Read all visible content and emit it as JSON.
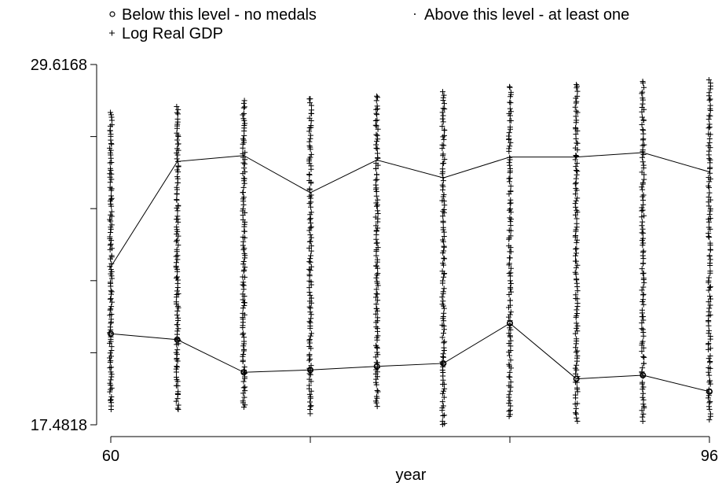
{
  "chart_data": {
    "type": "scatter",
    "title": "",
    "xlabel": "year",
    "ylabel": "",
    "xlim": [
      60,
      96
    ],
    "ylim": [
      17.4818,
      29.6168
    ],
    "x_ticks": [
      60,
      64,
      68,
      72,
      76,
      80,
      84,
      88,
      92,
      96
    ],
    "x_tick_labels": [
      "60",
      "96"
    ],
    "y_ticks": [
      17.4818,
      19.9088,
      22.3358,
      24.7628,
      27.1898,
      29.6168
    ],
    "y_tick_labels": [
      "17.4818",
      "29.6168"
    ],
    "legend": {
      "placement": "top",
      "entries": [
        {
          "marker": "circle",
          "label": "Below this level - no medals"
        },
        {
          "marker": "dot",
          "label": "Above this level - at least one"
        },
        {
          "marker": "plus",
          "label": "Log Real GDP"
        }
      ]
    },
    "series": [
      {
        "name": "Below this level - no medals",
        "marker": "circle",
        "connected": true,
        "x": [
          60,
          64,
          68,
          72,
          76,
          80,
          84,
          88,
          92,
          96
        ],
        "y": [
          20.55,
          20.35,
          19.25,
          19.33,
          19.45,
          19.55,
          20.9,
          19.03,
          19.15,
          18.6
        ]
      },
      {
        "name": "Above this level - at least one",
        "marker": "dot",
        "connected": true,
        "x": [
          60,
          64,
          68,
          72,
          76,
          80,
          84,
          88,
          92,
          96
        ],
        "y": [
          22.8,
          26.35,
          26.55,
          25.3,
          26.4,
          25.8,
          26.5,
          26.5,
          26.65,
          26.0
        ]
      },
      {
        "name": "Log Real GDP",
        "marker": "plus",
        "connected": false,
        "x": [
          60,
          64,
          68,
          72,
          76,
          80,
          84,
          88,
          92,
          96
        ],
        "y_min": [
          18.0,
          18.0,
          18.05,
          17.85,
          18.1,
          17.45,
          17.72,
          17.6,
          17.6,
          17.65
        ],
        "y_max": [
          28.0,
          28.2,
          28.4,
          28.5,
          28.55,
          28.7,
          28.9,
          29.0,
          29.05,
          29.1
        ]
      }
    ]
  }
}
